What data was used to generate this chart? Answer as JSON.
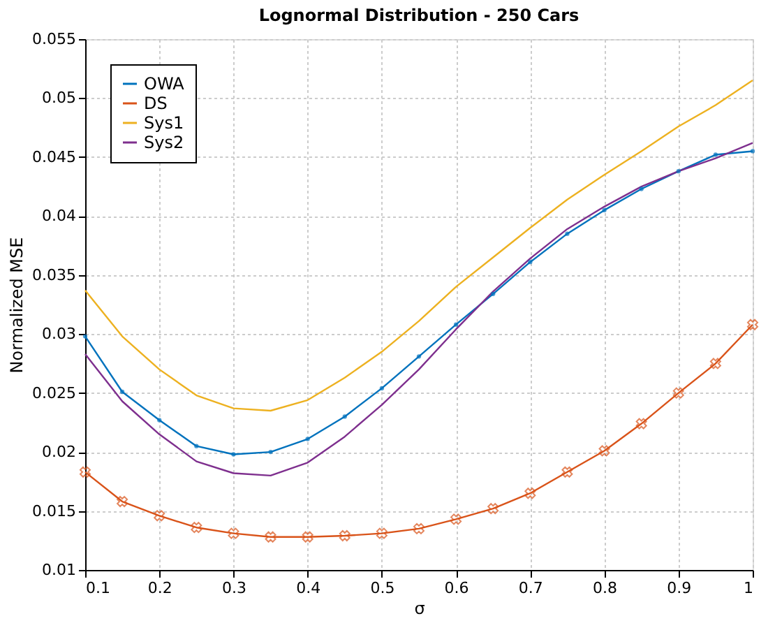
{
  "chart_data": {
    "type": "line",
    "title": "Lognormal Distribution - 250 Cars",
    "xlabel": "σ",
    "ylabel": "Normalized MSE",
    "x": [
      0.1,
      0.15,
      0.2,
      0.25,
      0.3,
      0.35,
      0.4,
      0.45,
      0.5,
      0.55,
      0.6,
      0.65,
      0.7,
      0.75,
      0.8,
      0.85,
      0.9,
      0.95,
      1.0
    ],
    "series": [
      {
        "name": "OWA",
        "color": "#0072bd",
        "marker": "circle",
        "values": [
          0.0298,
          0.0251,
          0.0227,
          0.0205,
          0.0198,
          0.02,
          0.0211,
          0.023,
          0.0254,
          0.0281,
          0.0308,
          0.0334,
          0.0361,
          0.0385,
          0.0405,
          0.0423,
          0.0438,
          0.0452,
          0.0455
        ]
      },
      {
        "name": "DS",
        "color": "#d95319",
        "marker": "cross",
        "values": [
          0.0183,
          0.0158,
          0.0146,
          0.0136,
          0.0131,
          0.0128,
          0.0128,
          0.0129,
          0.0131,
          0.0135,
          0.0143,
          0.0152,
          0.0165,
          0.0183,
          0.0201,
          0.0224,
          0.025,
          0.0275,
          0.0308
        ]
      },
      {
        "name": "Sys1",
        "color": "#edb120",
        "marker": "none",
        "values": [
          0.0337,
          0.0298,
          0.027,
          0.0248,
          0.0237,
          0.0235,
          0.0244,
          0.0263,
          0.0285,
          0.0311,
          0.034,
          0.0365,
          0.039,
          0.0414,
          0.0435,
          0.0455,
          0.0476,
          0.0494,
          0.0515
        ]
      },
      {
        "name": "Sys2",
        "color": "#7e2f8e",
        "marker": "none",
        "values": [
          0.0283,
          0.0243,
          0.0215,
          0.0192,
          0.0182,
          0.018,
          0.0191,
          0.0213,
          0.024,
          0.027,
          0.0304,
          0.0336,
          0.0364,
          0.0389,
          0.0408,
          0.0425,
          0.0438,
          0.0449,
          0.0462
        ]
      }
    ],
    "xlim": [
      0.1,
      1.0
    ],
    "xticks": [
      0.1,
      0.2,
      0.3,
      0.4,
      0.5,
      0.6,
      0.7,
      0.8,
      0.9,
      1
    ],
    "ylim": [
      0.01,
      0.055
    ],
    "yticks": [
      0.01,
      0.015,
      0.02,
      0.025,
      0.03,
      0.035,
      0.04,
      0.045,
      0.05,
      0.055
    ],
    "grid": true,
    "legend": "top left",
    "line_style": "solid"
  }
}
